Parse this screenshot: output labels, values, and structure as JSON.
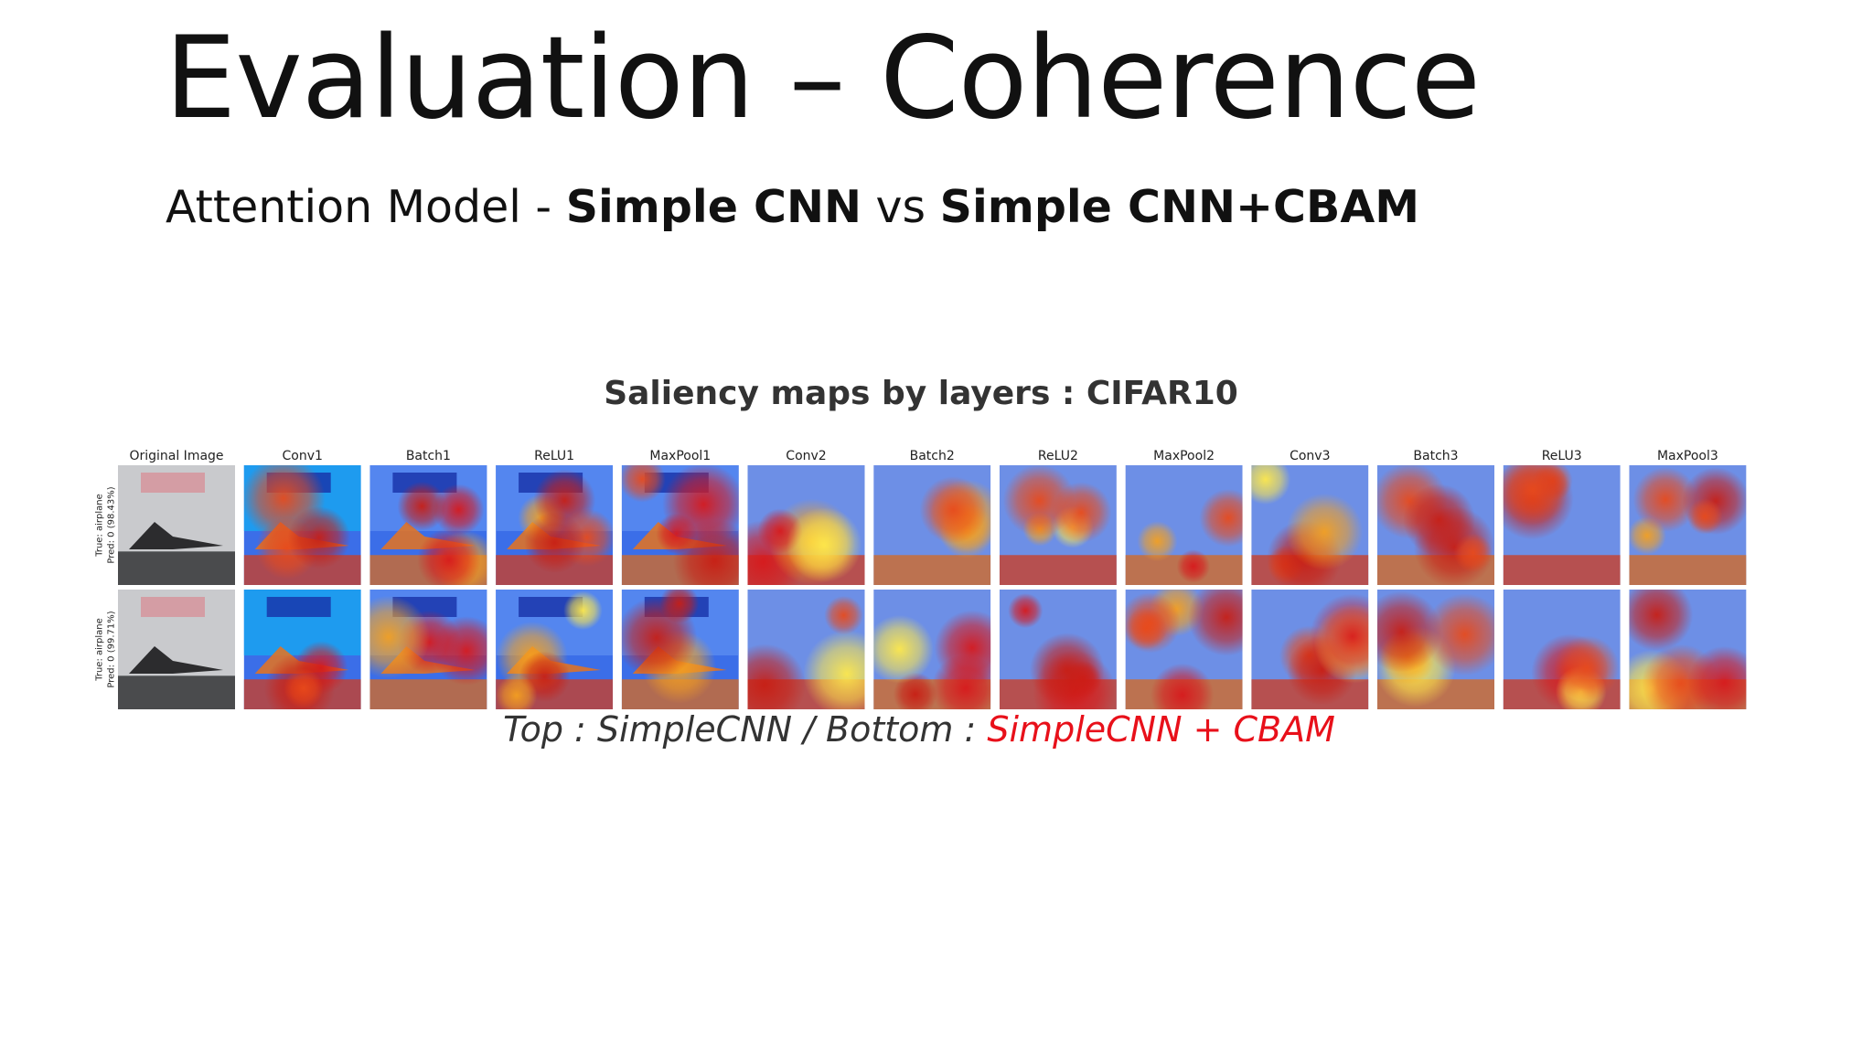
{
  "title": "Evaluation – Coherence",
  "subtitle": {
    "prefix": "Attention Model - ",
    "model_a": "Simple CNN",
    "middle": " vs ",
    "model_b": "Simple CNN+CBAM"
  },
  "figure": {
    "title": "Saliency maps by layers : CIFAR10",
    "columns": [
      "Original Image",
      "Conv1",
      "Batch1",
      "ReLU1",
      "MaxPool1",
      "Conv2",
      "Batch2",
      "ReLU2",
      "MaxPool2",
      "Conv3",
      "Batch3",
      "ReLU3",
      "MaxPool3"
    ],
    "rows": [
      {
        "true": "True: airplane",
        "pred": "Pred: 0 (98.43%)"
      },
      {
        "true": "True: airplane",
        "pred": "Pred: 0 (99.71%)"
      }
    ]
  },
  "caption": {
    "text": "Top : SimpleCNN / Bottom : ",
    "highlight": "SimpleCNN + CBAM"
  }
}
